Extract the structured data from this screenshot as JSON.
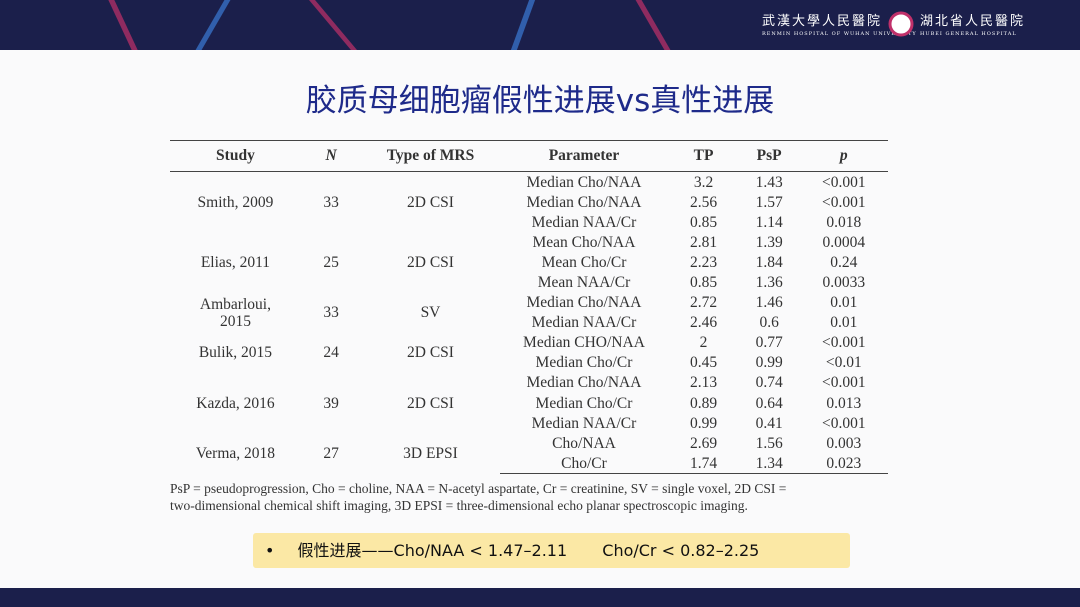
{
  "header": {
    "logo_left_cn": "武漢大學人民醫院",
    "logo_left_en": "RENMIN HOSPITAL OF WUHAN UNIVERSITY",
    "logo_right_cn": "湖北省人民醫院",
    "logo_right_en": "HUBEI GENERAL HOSPITAL"
  },
  "title": "胶质母细胞瘤假性进展vs真性进展",
  "table": {
    "columns": [
      "Study",
      "N",
      "Type of MRS",
      "Parameter",
      "TP",
      "PsP",
      "p"
    ],
    "groups": [
      {
        "study": "Smith, 2009",
        "n": "33",
        "type": "2D CSI",
        "rows": [
          [
            "Median Cho/NAA",
            "3.2",
            "1.43",
            "<0.001"
          ],
          [
            "Median Cho/NAA",
            "2.56",
            "1.57",
            "<0.001"
          ],
          [
            "Median NAA/Cr",
            "0.85",
            "1.14",
            "0.018"
          ]
        ]
      },
      {
        "study": "Elias, 2011",
        "n": "25",
        "type": "2D CSI",
        "rows": [
          [
            "Mean Cho/NAA",
            "2.81",
            "1.39",
            "0.0004"
          ],
          [
            "Mean Cho/Cr",
            "2.23",
            "1.84",
            "0.24"
          ],
          [
            "Mean NAA/Cr",
            "0.85",
            "1.36",
            "0.0033"
          ]
        ]
      },
      {
        "study": "Ambarloui, 2015",
        "n": "33",
        "type": "SV",
        "rows": [
          [
            "Median Cho/NAA",
            "2.72",
            "1.46",
            "0.01"
          ],
          [
            "Median NAA/Cr",
            "2.46",
            "0.6",
            "0.01"
          ]
        ]
      },
      {
        "study": "Bulik, 2015",
        "n": "24",
        "type": "2D CSI",
        "rows": [
          [
            "Median CHO/NAA",
            "2",
            "0.77",
            "<0.001"
          ],
          [
            "Median Cho/Cr",
            "0.45",
            "0.99",
            "<0.01"
          ]
        ]
      },
      {
        "study": "Kazda, 2016",
        "n": "39",
        "type": "2D CSI",
        "rows": [
          [
            "Median Cho/NAA",
            "2.13",
            "0.74",
            "<0.001"
          ],
          [
            "Median Cho/Cr",
            "0.89",
            "0.64",
            "0.013"
          ],
          [
            "Median NAA/Cr",
            "0.99",
            "0.41",
            "<0.001"
          ]
        ]
      },
      {
        "study": "Verma, 2018",
        "n": "27",
        "type": "3D EPSI",
        "rows": [
          [
            "Cho/NAA",
            "2.69",
            "1.56",
            "0.003"
          ],
          [
            "Cho/Cr",
            "1.74",
            "1.34",
            "0.023"
          ]
        ]
      }
    ]
  },
  "footnote": [
    "PsP = pseudoprogression, Cho = choline, NAA = N-acetyl aspartate, Cr = creatinine, SV = single voxel, 2D CSI =",
    "two-dimensional chemical shift imaging, 3D EPSI = three-dimensional echo planar spectroscopic imaging."
  ],
  "bullet": {
    "marker": "•",
    "text1": "假性进展——Cho/NAA < 1.47–2.11",
    "text2": "Cho/Cr < 0.82–2.25"
  }
}
